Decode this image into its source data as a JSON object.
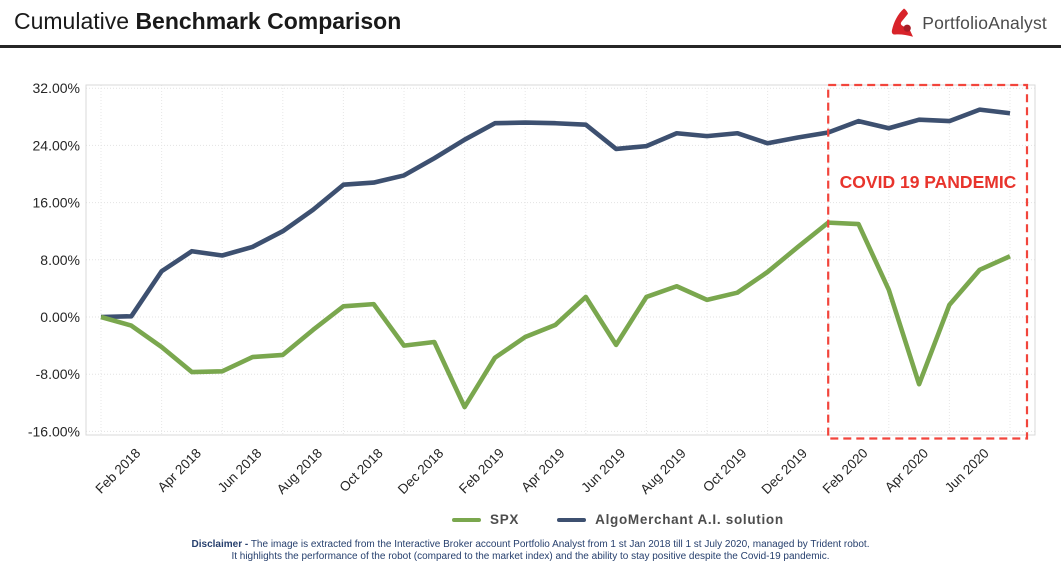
{
  "header": {
    "title_regular": "Cumulative",
    "title_bold": "Benchmark Comparison",
    "logo_text": "PortfolioAnalyst"
  },
  "chart_data": {
    "type": "line",
    "title": "Cumulative Benchmark Comparison",
    "xlabel": "",
    "ylabel": "",
    "ylim": [
      -16,
      32
    ],
    "grid": true,
    "legend_position": "bottom",
    "y_ticks": [
      "32.00%",
      "24.00%",
      "16.00%",
      "8.00%",
      "0.00%",
      "-8.00%",
      "-16.00%"
    ],
    "x": [
      "Jan 2018",
      "Feb 2018",
      "Mar 2018",
      "Apr 2018",
      "May 2018",
      "Jun 2018",
      "Jul 2018",
      "Aug 2018",
      "Sep 2018",
      "Oct 2018",
      "Nov 2018",
      "Dec 2018",
      "Jan 2019",
      "Feb 2019",
      "Mar 2019",
      "Apr 2019",
      "May 2019",
      "Jun 2019",
      "Jul 2019",
      "Aug 2019",
      "Sep 2019",
      "Oct 2019",
      "Nov 2019",
      "Dec 2019",
      "Jan 2020",
      "Feb 2020",
      "Mar 2020",
      "Apr 2020",
      "May 2020",
      "Jun 2020",
      "Jul 2020"
    ],
    "x_tick_labels": [
      "Feb 2018",
      "Apr 2018",
      "Jun 2018",
      "Aug 2018",
      "Oct 2018",
      "Dec 2018",
      "Feb 2019",
      "Apr 2019",
      "Jun 2019",
      "Aug 2019",
      "Oct 2019",
      "Dec 2019",
      "Feb 2020",
      "Apr 2020",
      "Jun 2020"
    ],
    "series": [
      {
        "name": "SPX",
        "color": "#7aa74e",
        "values": [
          0,
          -1.2,
          -4.2,
          -7.7,
          -7.6,
          -5.6,
          -5.3,
          -1.8,
          1.5,
          1.8,
          -4.0,
          -3.5,
          -12.6,
          -5.7,
          -2.8,
          -1.1,
          2.8,
          -3.9,
          2.8,
          4.3,
          2.4,
          3.4,
          6.3,
          9.8,
          13.2,
          13.0,
          3.8,
          -9.4,
          1.7,
          6.6,
          8.5
        ]
      },
      {
        "name": "AlgoMerchant A.I. solution",
        "color": "#3d5070",
        "values": [
          0,
          0.1,
          6.4,
          9.2,
          8.6,
          9.8,
          12.0,
          15.0,
          18.5,
          18.8,
          19.8,
          22.2,
          24.8,
          27.1,
          27.2,
          27.1,
          26.9,
          23.5,
          23.9,
          25.7,
          25.3,
          25.7,
          24.3,
          25.1,
          25.8,
          27.4,
          26.4,
          27.6,
          27.4,
          29.0,
          28.5
        ]
      }
    ],
    "annotation": {
      "text": "COVID 19 PANDEMIC",
      "text_color": "#e8342c",
      "box_color": "#f2453c",
      "box_from_month": "Jan 2020",
      "box_to_month": "Jul 2020"
    }
  },
  "legend": {
    "items": [
      {
        "label": "SPX"
      },
      {
        "label": "AlgoMerchant A.I. solution"
      }
    ]
  },
  "footer": {
    "disclaimer_label": "Disclaimer -",
    "line1": "The image is extracted from the Interactive Broker account Portfolio Analyst from 1 st Jan 2018 till 1 st July 2020, managed by Trident robot.",
    "line2": "It highlights the performance of the robot (compared to the market index) and the ability to stay positive despite the Covid-19 pandemic."
  }
}
